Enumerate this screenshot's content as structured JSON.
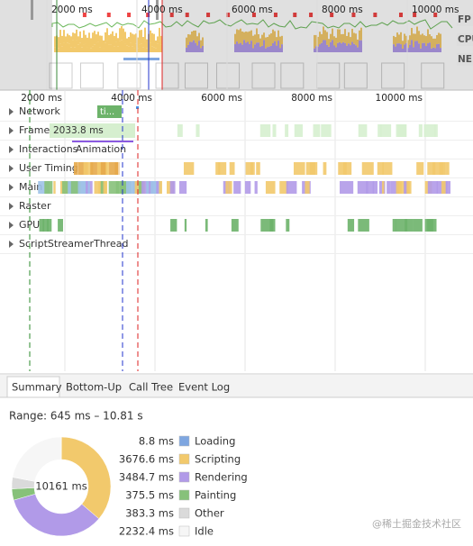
{
  "overview": {
    "ticks": [
      "2000 ms",
      "4000 ms",
      "6000 ms",
      "8000 ms",
      "10000 ms"
    ],
    "labels": [
      "FP",
      "CPU",
      "NE"
    ]
  },
  "timeline": {
    "ticks": [
      "2000 ms",
      "4000 ms",
      "6000 ms",
      "8000 ms",
      "10000 ms"
    ],
    "tracks": [
      "Network",
      "Frames",
      "Interactions",
      "User Timing",
      "Main",
      "Raster",
      "GPU",
      "ScriptStreamerThread"
    ],
    "network_label": "ti...",
    "frame_label": "2033.8 ms",
    "interaction_label": "Animation"
  },
  "tabs": [
    "Summary",
    "Bottom-Up",
    "Call Tree",
    "Event Log"
  ],
  "summary": {
    "range": "Range: 645 ms – 10.81 s",
    "total": "10161 ms",
    "items": [
      {
        "value": "8.8 ms",
        "label": "Loading",
        "color": "#7ea6e0"
      },
      {
        "value": "3676.6 ms",
        "label": "Scripting",
        "color": "#f2c96c"
      },
      {
        "value": "3484.7 ms",
        "label": "Rendering",
        "color": "#b19ae8"
      },
      {
        "value": "375.5 ms",
        "label": "Painting",
        "color": "#87c17a"
      },
      {
        "value": "383.3 ms",
        "label": "Other",
        "color": "#dadada"
      },
      {
        "value": "2232.4 ms",
        "label": "Idle",
        "color": "#f6f6f6"
      }
    ]
  },
  "watermark": "@稀土掘金技术社区"
}
